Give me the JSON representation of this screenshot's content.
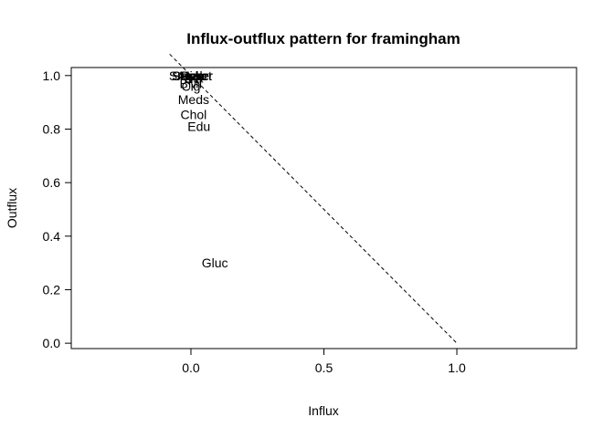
{
  "chart_data": {
    "type": "scatter",
    "title": "Influx-outflux pattern for framingham",
    "xlabel": "Influx",
    "ylabel": "Outflux",
    "xlim": [
      -0.45,
      1.45
    ],
    "ylim": [
      -0.02,
      1.03
    ],
    "xticks": [
      0.0,
      0.5,
      1.0
    ],
    "xtick_labels": [
      "0.0",
      "0.5",
      "1.0"
    ],
    "yticks": [
      0.0,
      0.2,
      0.4,
      0.6,
      0.8,
      1.0
    ],
    "ytick_labels": [
      "0.0",
      "0.2",
      "0.4",
      "0.6",
      "0.8",
      "1.0"
    ],
    "grid": false,
    "reference_line": {
      "x": [
        -0.08,
        1.0
      ],
      "y": [
        1.08,
        0.0
      ],
      "style": "dashed"
    },
    "points": [
      {
        "label": "Sex",
        "x": -0.03,
        "y": 1.0
      },
      {
        "label": "Smoker",
        "x": 0.0,
        "y": 1.0
      },
      {
        "label": "Age",
        "x": -0.01,
        "y": 1.0
      },
      {
        "label": "Stroke",
        "x": 0.0,
        "y": 1.0
      },
      {
        "label": "Hyp",
        "x": 0.0,
        "y": 1.0
      },
      {
        "label": "Diab",
        "x": 0.01,
        "y": 1.0
      },
      {
        "label": "Sys",
        "x": 0.0,
        "y": 1.0
      },
      {
        "label": "Heart",
        "x": 0.02,
        "y": 1.0
      },
      {
        "label": "Dia",
        "x": 0.01,
        "y": 0.99
      },
      {
        "label": "BMI",
        "x": 0.0,
        "y": 0.97
      },
      {
        "label": "Cig",
        "x": 0.0,
        "y": 0.96
      },
      {
        "label": "Meds",
        "x": 0.01,
        "y": 0.91
      },
      {
        "label": "Chol",
        "x": 0.01,
        "y": 0.855
      },
      {
        "label": "Edu",
        "x": 0.03,
        "y": 0.81
      },
      {
        "label": "Gluc",
        "x": 0.09,
        "y": 0.3
      }
    ]
  }
}
